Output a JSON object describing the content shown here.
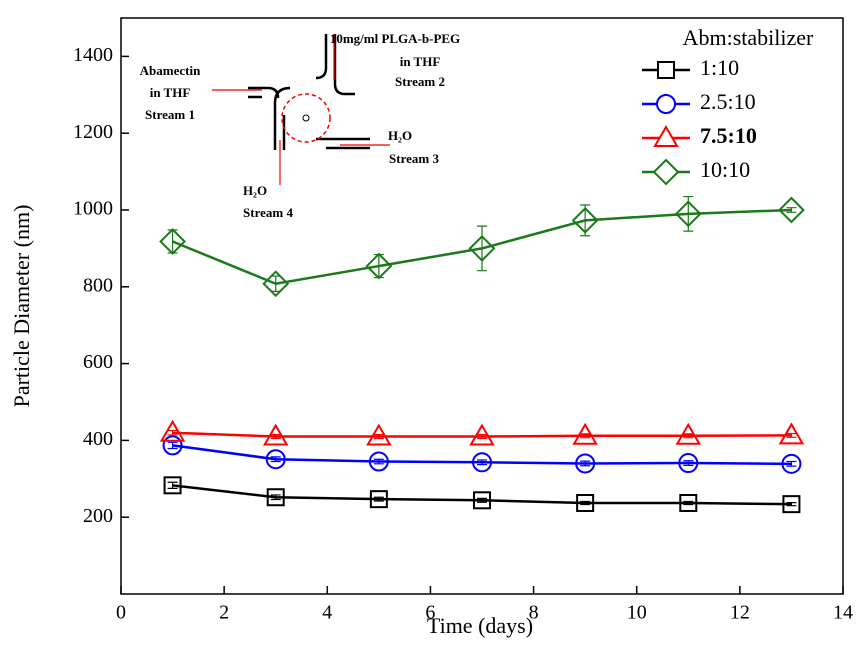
{
  "chart_data": {
    "type": "line",
    "xlabel": "Time (days)",
    "ylabel": "Particle Diameter (nm)",
    "x": [
      1,
      3,
      5,
      7,
      9,
      11,
      13
    ],
    "xlim": [
      0,
      14
    ],
    "xticks": [
      0,
      2,
      4,
      6,
      8,
      10,
      12,
      14
    ],
    "ylim": [
      0,
      1500
    ],
    "yticks": [
      200,
      400,
      600,
      800,
      1000,
      1200,
      1400
    ],
    "legend_title": "Abm:stabilizer",
    "legend_position": "upper right",
    "series": [
      {
        "name": "1:10",
        "color": "#000000",
        "marker": "square",
        "values": [
          283,
          252,
          247,
          244,
          237,
          237,
          234
        ],
        "errors": [
          8,
          6,
          5,
          5,
          4,
          4,
          4
        ]
      },
      {
        "name": "2.5:10",
        "color": "#0000ff",
        "marker": "circle",
        "values": [
          387,
          351,
          345,
          343,
          340,
          341,
          339
        ],
        "errors": [
          8,
          6,
          6,
          6,
          6,
          6,
          6
        ]
      },
      {
        "name": "7.5:10",
        "color": "#ff0000",
        "marker": "triangle",
        "bold": true,
        "values": [
          420,
          410,
          410,
          410,
          412,
          412,
          413
        ],
        "errors": [
          6,
          5,
          5,
          5,
          5,
          5,
          5
        ]
      },
      {
        "name": "10:10",
        "color": "#1a7a1a",
        "marker": "diamond",
        "values": [
          918,
          808,
          854,
          900,
          973,
          990,
          1000
        ],
        "errors": [
          30,
          20,
          30,
          58,
          40,
          45,
          6
        ]
      }
    ],
    "inset": {
      "stream2": [
        "10mg/ml PLGA-b-PEG",
        "in THF",
        "Stream 2"
      ],
      "stream1": [
        "Abamectin",
        "in THF",
        "Stream 1"
      ],
      "stream3": [
        "H₂O",
        "Stream 3"
      ],
      "stream4": [
        "H₂O",
        "Stream 4"
      ]
    }
  }
}
